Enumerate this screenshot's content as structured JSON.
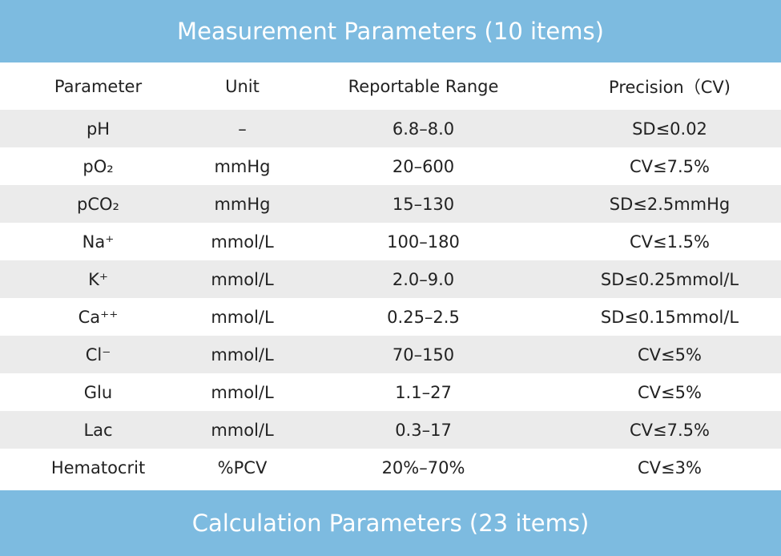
{
  "header": {
    "title": "Measurement Parameters (10 items)"
  },
  "table": {
    "columns": [
      "Parameter",
      "Unit",
      "Reportable Range",
      "Precision（CV)"
    ],
    "rows": [
      [
        "pH",
        "–",
        "6.8–8.0",
        "SD≤0.02"
      ],
      [
        "pO₂",
        "mmHg",
        "20–600",
        "CV≤7.5%"
      ],
      [
        "pCO₂",
        "mmHg",
        "15–130",
        "SD≤2.5mmHg"
      ],
      [
        "Na⁺",
        "mmol/L",
        "100–180",
        "CV≤1.5%"
      ],
      [
        "K⁺",
        "mmol/L",
        "2.0–9.0",
        "SD≤0.25mmol/L"
      ],
      [
        "Ca⁺⁺",
        "mmol/L",
        "0.25–2.5",
        "SD≤0.15mmol/L"
      ],
      [
        "Cl⁻",
        "mmol/L",
        "70–150",
        "CV≤5%"
      ],
      [
        "Glu",
        "mmol/L",
        "1.1–27",
        "CV≤5%"
      ],
      [
        "Lac",
        "mmol/L",
        "0.3–17",
        "CV≤7.5%"
      ],
      [
        "Hematocrit",
        "%PCV",
        "20%–70%",
        "CV≤3%"
      ]
    ]
  },
  "footer": {
    "title": "Calculation Parameters (23 items)"
  }
}
